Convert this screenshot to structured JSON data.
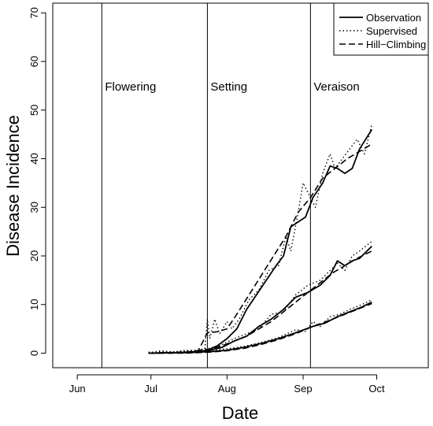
{
  "chart_data": {
    "type": "line",
    "title": "",
    "xlabel": "Date",
    "ylabel": "Disease Incidence",
    "x_ticks": [
      "Jun",
      "Jul",
      "Aug",
      "Sep",
      "Oct"
    ],
    "y_ticks": [
      0,
      10,
      20,
      30,
      40,
      50,
      60,
      70
    ],
    "ylim": [
      -3,
      72
    ],
    "xlim": [
      "2023-05-22",
      "2023-10-22"
    ],
    "grid": false,
    "legend_position": "top-right",
    "legend": [
      {
        "name": "Observation",
        "style": "solid"
      },
      {
        "name": "Supervised",
        "style": "dotted"
      },
      {
        "name": "Hill−Climbing",
        "style": "dashed"
      }
    ],
    "stages": [
      {
        "label": "Flowering",
        "date": "2023-06-11"
      },
      {
        "label": "Setting",
        "date": "2023-07-24"
      },
      {
        "label": "Veraison",
        "date": "2023-09-04"
      }
    ],
    "curve_groups": [
      {
        "observation": [
          [
            "2023-06-30",
            0
          ],
          [
            "2023-07-10",
            0.1
          ],
          [
            "2023-07-20",
            0.3
          ],
          [
            "2023-07-24",
            0.6
          ],
          [
            "2023-07-28",
            1.5
          ],
          [
            "2023-08-01",
            3
          ],
          [
            "2023-08-05",
            5
          ],
          [
            "2023-08-09",
            9
          ],
          [
            "2023-08-13",
            12
          ],
          [
            "2023-08-17",
            15
          ],
          [
            "2023-08-21",
            18
          ],
          [
            "2023-08-24",
            20
          ],
          [
            "2023-08-27",
            26
          ],
          [
            "2023-08-30",
            27
          ],
          [
            "2023-09-02",
            28
          ],
          [
            "2023-09-05",
            32
          ],
          [
            "2023-09-09",
            35
          ],
          [
            "2023-09-12",
            38.5
          ],
          [
            "2023-09-15",
            38
          ],
          [
            "2023-09-18",
            37
          ],
          [
            "2023-09-21",
            38
          ],
          [
            "2023-09-24",
            42
          ],
          [
            "2023-09-29",
            46
          ]
        ],
        "supervised": [
          [
            "2023-06-30",
            0
          ],
          [
            "2023-07-05",
            0.5
          ],
          [
            "2023-07-10",
            0.2
          ],
          [
            "2023-07-15",
            0.6
          ],
          [
            "2023-07-20",
            0.5
          ],
          [
            "2023-07-23",
            1
          ],
          [
            "2023-07-24",
            7
          ],
          [
            "2023-07-25",
            3
          ],
          [
            "2023-07-27",
            7
          ],
          [
            "2023-07-29",
            4
          ],
          [
            "2023-08-01",
            6.5
          ],
          [
            "2023-08-03",
            5
          ],
          [
            "2023-08-06",
            7
          ],
          [
            "2023-08-10",
            11
          ],
          [
            "2023-08-14",
            13
          ],
          [
            "2023-08-18",
            17
          ],
          [
            "2023-08-22",
            18
          ],
          [
            "2023-08-25",
            24
          ],
          [
            "2023-08-27",
            21
          ],
          [
            "2023-08-30",
            29
          ],
          [
            "2023-09-01",
            35
          ],
          [
            "2023-09-03",
            33
          ],
          [
            "2023-09-06",
            30
          ],
          [
            "2023-09-09",
            37
          ],
          [
            "2023-09-12",
            41
          ],
          [
            "2023-09-14",
            38
          ],
          [
            "2023-09-17",
            40
          ],
          [
            "2023-09-20",
            42
          ],
          [
            "2023-09-23",
            44
          ],
          [
            "2023-09-26",
            41
          ],
          [
            "2023-09-29",
            47
          ]
        ],
        "hill_climbing": [
          [
            "2023-06-30",
            0
          ],
          [
            "2023-07-10",
            0
          ],
          [
            "2023-07-20",
            0.2
          ],
          [
            "2023-07-24",
            4.2
          ],
          [
            "2023-07-28",
            4.4
          ],
          [
            "2023-08-01",
            5
          ],
          [
            "2023-08-05",
            8
          ],
          [
            "2023-08-10",
            12
          ],
          [
            "2023-08-15",
            16
          ],
          [
            "2023-08-20",
            20
          ],
          [
            "2023-08-25",
            24
          ],
          [
            "2023-08-30",
            29
          ],
          [
            "2023-09-04",
            32
          ],
          [
            "2023-09-09",
            36
          ],
          [
            "2023-09-14",
            38
          ],
          [
            "2023-09-19",
            40
          ],
          [
            "2023-09-24",
            41.5
          ],
          [
            "2023-09-29",
            43
          ]
        ]
      },
      {
        "observation": [
          [
            "2023-06-30",
            0
          ],
          [
            "2023-07-10",
            0.1
          ],
          [
            "2023-07-20",
            0.2
          ],
          [
            "2023-07-25",
            0.6
          ],
          [
            "2023-07-30",
            1.2
          ],
          [
            "2023-08-04",
            2.5
          ],
          [
            "2023-08-09",
            3.5
          ],
          [
            "2023-08-14",
            5.5
          ],
          [
            "2023-08-19",
            7
          ],
          [
            "2023-08-24",
            9
          ],
          [
            "2023-08-29",
            11.5
          ],
          [
            "2023-09-03",
            12.5
          ],
          [
            "2023-09-08",
            14
          ],
          [
            "2023-09-12",
            16
          ],
          [
            "2023-09-15",
            19
          ],
          [
            "2023-09-18",
            18
          ],
          [
            "2023-09-21",
            19
          ],
          [
            "2023-09-24",
            19.5
          ],
          [
            "2023-09-29",
            22
          ]
        ],
        "supervised": [
          [
            "2023-06-30",
            0
          ],
          [
            "2023-07-15",
            0.3
          ],
          [
            "2023-07-25",
            1
          ],
          [
            "2023-07-30",
            1.8
          ],
          [
            "2023-08-04",
            3
          ],
          [
            "2023-08-09",
            4
          ],
          [
            "2023-08-14",
            5
          ],
          [
            "2023-08-19",
            8
          ],
          [
            "2023-08-24",
            8.5
          ],
          [
            "2023-08-29",
            12
          ],
          [
            "2023-09-03",
            14
          ],
          [
            "2023-09-08",
            15
          ],
          [
            "2023-09-12",
            17
          ],
          [
            "2023-09-15",
            18.5
          ],
          [
            "2023-09-18",
            17
          ],
          [
            "2023-09-21",
            20
          ],
          [
            "2023-09-24",
            21
          ],
          [
            "2023-09-29",
            23
          ]
        ],
        "hill_climbing": [
          [
            "2023-06-30",
            0
          ],
          [
            "2023-07-15",
            0.2
          ],
          [
            "2023-07-25",
            0.8
          ],
          [
            "2023-07-30",
            1.5
          ],
          [
            "2023-08-04",
            2.5
          ],
          [
            "2023-08-09",
            3.5
          ],
          [
            "2023-08-14",
            5
          ],
          [
            "2023-08-19",
            6.5
          ],
          [
            "2023-08-24",
            8.5
          ],
          [
            "2023-08-29",
            10.5
          ],
          [
            "2023-09-03",
            12.5
          ],
          [
            "2023-09-08",
            14.5
          ],
          [
            "2023-09-13",
            16.5
          ],
          [
            "2023-09-18",
            18
          ],
          [
            "2023-09-23",
            19.5
          ],
          [
            "2023-09-29",
            21
          ]
        ]
      },
      {
        "observation": [
          [
            "2023-06-30",
            0
          ],
          [
            "2023-07-15",
            0.1
          ],
          [
            "2023-07-25",
            0.3
          ],
          [
            "2023-08-01",
            0.6
          ],
          [
            "2023-08-08",
            1.2
          ],
          [
            "2023-08-15",
            2
          ],
          [
            "2023-08-22",
            3
          ],
          [
            "2023-08-29",
            4.2
          ],
          [
            "2023-09-05",
            5.5
          ],
          [
            "2023-09-10",
            6.2
          ],
          [
            "2023-09-15",
            7.5
          ],
          [
            "2023-09-20",
            8.5
          ],
          [
            "2023-09-25",
            9.5
          ],
          [
            "2023-09-29",
            10.5
          ]
        ],
        "supervised": [
          [
            "2023-06-30",
            0.2
          ],
          [
            "2023-07-15",
            0.3
          ],
          [
            "2023-07-25",
            0.5
          ],
          [
            "2023-08-01",
            0.9
          ],
          [
            "2023-08-08",
            1.4
          ],
          [
            "2023-08-15",
            2.2
          ],
          [
            "2023-08-22",
            3.2
          ],
          [
            "2023-08-29",
            4.8
          ],
          [
            "2023-09-02",
            4.5
          ],
          [
            "2023-09-05",
            6.5
          ],
          [
            "2023-09-08",
            5.5
          ],
          [
            "2023-09-12",
            7.5
          ],
          [
            "2023-09-16",
            8
          ],
          [
            "2023-09-20",
            9
          ],
          [
            "2023-09-25",
            10
          ],
          [
            "2023-09-29",
            11
          ]
        ],
        "hill_climbing": [
          [
            "2023-06-30",
            0
          ],
          [
            "2023-07-15",
            0
          ],
          [
            "2023-07-25",
            0.2
          ],
          [
            "2023-08-01",
            0.5
          ],
          [
            "2023-08-08",
            1
          ],
          [
            "2023-08-15",
            1.8
          ],
          [
            "2023-08-22",
            2.8
          ],
          [
            "2023-08-29",
            4
          ],
          [
            "2023-09-05",
            5.5
          ],
          [
            "2023-09-12",
            6.8
          ],
          [
            "2023-09-19",
            8.2
          ],
          [
            "2023-09-24",
            9.2
          ],
          [
            "2023-09-29",
            10.2
          ]
        ]
      }
    ]
  }
}
